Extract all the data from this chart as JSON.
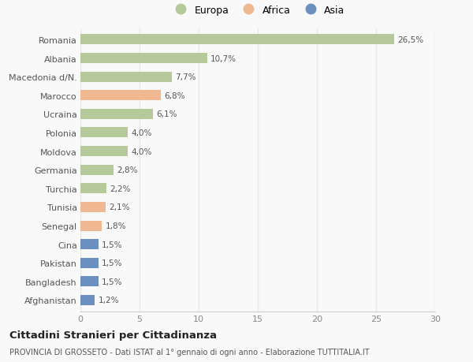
{
  "categories": [
    "Romania",
    "Albania",
    "Macedonia d/N.",
    "Marocco",
    "Ucraina",
    "Polonia",
    "Moldova",
    "Germania",
    "Turchia",
    "Tunisia",
    "Senegal",
    "Cina",
    "Pakistan",
    "Bangladesh",
    "Afghanistan"
  ],
  "values": [
    26.5,
    10.7,
    7.7,
    6.8,
    6.1,
    4.0,
    4.0,
    2.8,
    2.2,
    2.1,
    1.8,
    1.5,
    1.5,
    1.5,
    1.2
  ],
  "labels": [
    "26,5%",
    "10,7%",
    "7,7%",
    "6,8%",
    "6,1%",
    "4,0%",
    "4,0%",
    "2,8%",
    "2,2%",
    "2,1%",
    "1,8%",
    "1,5%",
    "1,5%",
    "1,5%",
    "1,2%"
  ],
  "continents": [
    "Europa",
    "Europa",
    "Europa",
    "Africa",
    "Europa",
    "Europa",
    "Europa",
    "Europa",
    "Europa",
    "Africa",
    "Africa",
    "Asia",
    "Asia",
    "Asia",
    "Asia"
  ],
  "colors": {
    "Europa": "#b5c99a",
    "Africa": "#f0b992",
    "Asia": "#6b8fbe"
  },
  "xlim": [
    0,
    30
  ],
  "xticks": [
    0,
    5,
    10,
    15,
    20,
    25,
    30
  ],
  "title": "Cittadini Stranieri per Cittadinanza",
  "subtitle": "PROVINCIA DI GROSSETO - Dati ISTAT al 1° gennaio di ogni anno - Elaborazione TUTTITALIA.IT",
  "background_color": "#f9f9f9",
  "grid_color": "#e8e8e8",
  "bar_height": 0.55,
  "figsize": [
    6.0,
    4.6
  ],
  "dpi": 100
}
